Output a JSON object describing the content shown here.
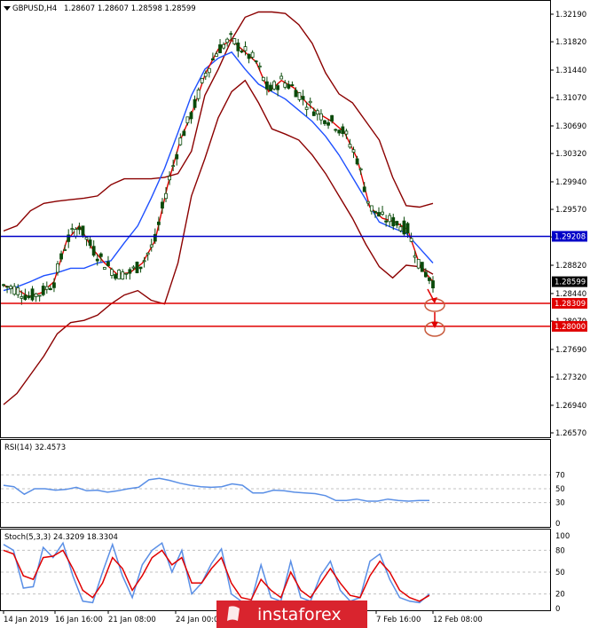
{
  "chart_data": [
    {
      "type": "candlestick",
      "title": "GBPUSD,H4",
      "ohlc_header": "1.28607 1.28607 1.28598 1.28599",
      "y_ticks": [
        "1.32190",
        "1.31820",
        "1.31440",
        "1.31070",
        "1.30690",
        "1.30320",
        "1.29940",
        "1.29570",
        "1.29200",
        "1.28820",
        "1.28440",
        "1.28070",
        "1.27690",
        "1.27320",
        "1.26940",
        "1.26570"
      ],
      "ylim": [
        1.2657,
        1.3219
      ],
      "price_labels": [
        {
          "value": "1.29208",
          "color": "#0000c8"
        },
        {
          "value": "1.28599",
          "color": "#000000"
        },
        {
          "value": "1.28309",
          "color": "#e00000"
        },
        {
          "value": "1.28000",
          "color": "#e00000"
        }
      ],
      "x_labels": [
        "14 Jan 2019",
        "16 Jan 16:00",
        "21 Jan 08:00",
        "24 Jan 00:00",
        "7 Feb 16:00",
        "12 Feb 08:00"
      ],
      "series": [
        {
          "kind": "bollinger_upper",
          "color": "#8b0000",
          "values": [
            1.2928,
            1.2935,
            1.2955,
            1.2965,
            1.2968,
            1.297,
            1.2972,
            1.2975,
            1.299,
            1.2998,
            1.2998,
            1.2998,
            1.3,
            1.3005,
            1.3035,
            1.311,
            1.3145,
            1.3185,
            1.3215,
            1.3222,
            1.3222,
            1.322,
            1.3205,
            1.318,
            1.314,
            1.3112,
            1.31,
            1.3075,
            1.305,
            1.3,
            1.2962,
            1.296,
            1.2965
          ]
        },
        {
          "kind": "bollinger_mid",
          "color": "#1e50ff",
          "values": [
            1.2848,
            1.2853,
            1.286,
            1.2868,
            1.2872,
            1.2878,
            1.2878,
            1.2885,
            1.2888,
            1.2912,
            1.2935,
            1.2972,
            1.3012,
            1.306,
            1.311,
            1.3145,
            1.316,
            1.3168,
            1.3145,
            1.3125,
            1.3115,
            1.3105,
            1.309,
            1.3075,
            1.3055,
            1.303,
            1.3,
            1.297,
            1.294,
            1.2932,
            1.2925,
            1.2905,
            1.2885
          ]
        },
        {
          "kind": "bollinger_lower",
          "color": "#8b0000",
          "values": [
            1.2695,
            1.271,
            1.2735,
            1.276,
            1.279,
            1.2805,
            1.2808,
            1.2815,
            1.283,
            1.2842,
            1.2848,
            1.2835,
            1.283,
            1.2885,
            1.2975,
            1.3025,
            1.308,
            1.3115,
            1.313,
            1.31,
            1.3065,
            1.3058,
            1.305,
            1.303,
            1.3005,
            1.2975,
            1.2945,
            1.291,
            1.288,
            1.2865,
            1.2882,
            1.288,
            1.287
          ]
        },
        {
          "kind": "ma_fast",
          "color": "#e00000",
          "values": [
            1.2855,
            1.285,
            1.284,
            1.2845,
            1.286,
            1.2915,
            1.2935,
            1.2905,
            1.2885,
            1.287,
            1.2872,
            1.2885,
            1.2915,
            1.299,
            1.305,
            1.309,
            1.314,
            1.3172,
            1.3185,
            1.317,
            1.3155,
            1.3115,
            1.313,
            1.312,
            1.31,
            1.3085,
            1.3075,
            1.306,
            1.3025,
            1.296,
            1.2945,
            1.294,
            1.293,
            1.288,
            1.286
          ]
        }
      ],
      "hlines": [
        {
          "value": 1.29208,
          "color": "#0000c8"
        },
        {
          "value": 1.28309,
          "color": "#e00000"
        },
        {
          "value": 1.28,
          "color": "#e00000"
        }
      ]
    },
    {
      "type": "line",
      "title": "RSI(14) 32.4573",
      "y_ticks": [
        "70",
        "50",
        "30",
        "0"
      ],
      "ylim": [
        0,
        100
      ],
      "series": [
        {
          "name": "RSI",
          "color": "#5a8fe6",
          "values": [
            55,
            53,
            42,
            50,
            50,
            48,
            49,
            52,
            47,
            48,
            45,
            47,
            50,
            52,
            63,
            65,
            62,
            58,
            55,
            53,
            52,
            53,
            57,
            55,
            44,
            44,
            48,
            47,
            45,
            44,
            43,
            40,
            33,
            33,
            35,
            32,
            32,
            35,
            33,
            32,
            33,
            33
          ]
        }
      ]
    },
    {
      "type": "line",
      "title": "Stoch(5,3,3) 24.3209 18.3304",
      "y_ticks": [
        "100",
        "80",
        "50",
        "20",
        "0"
      ],
      "ylim": [
        0,
        100
      ],
      "series": [
        {
          "name": "Main",
          "color": "#5a8fe6",
          "values": [
            88,
            80,
            28,
            30,
            84,
            70,
            90,
            45,
            10,
            8,
            50,
            88,
            45,
            15,
            60,
            80,
            90,
            50,
            80,
            20,
            35,
            62,
            82,
            20,
            10,
            10,
            60,
            15,
            10,
            65,
            15,
            10,
            45,
            65,
            25,
            10,
            15,
            65,
            75,
            40,
            15,
            10,
            8,
            20
          ]
        },
        {
          "name": "Signal",
          "color": "#e00000",
          "values": [
            80,
            75,
            45,
            40,
            70,
            72,
            80,
            55,
            25,
            15,
            35,
            70,
            55,
            25,
            45,
            70,
            80,
            60,
            70,
            35,
            35,
            55,
            70,
            35,
            15,
            12,
            40,
            25,
            15,
            50,
            25,
            15,
            35,
            55,
            35,
            18,
            15,
            45,
            65,
            50,
            25,
            15,
            10,
            18
          ]
        }
      ]
    }
  ],
  "watermark": "instaforex"
}
